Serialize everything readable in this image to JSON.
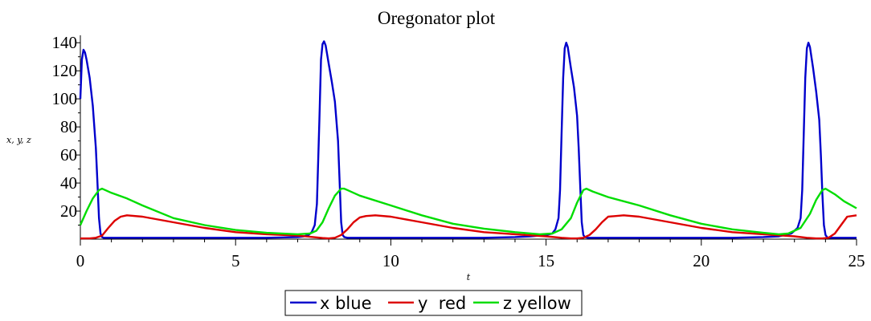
{
  "chart_data": {
    "type": "line",
    "title": "Oregonator  plot",
    "xlabel": "t",
    "ylabel": "x, y, z",
    "xlim": [
      0,
      25
    ],
    "ylim": [
      0,
      143
    ],
    "xticks": [
      0,
      5,
      10,
      15,
      20,
      25
    ],
    "yticks": [
      20,
      40,
      60,
      80,
      100,
      120,
      140
    ],
    "grid": false,
    "legend_position": "bottom-center",
    "series": [
      {
        "name": "x blue",
        "color": "#0000cc",
        "x": [
          0,
          0.05,
          0.1,
          0.15,
          0.2,
          0.3,
          0.4,
          0.5,
          0.55,
          0.6,
          0.65,
          0.7,
          0.75,
          0.8,
          1.0,
          2.0,
          4.0,
          6.0,
          7.0,
          7.2,
          7.35,
          7.45,
          7.55,
          7.62,
          7.7,
          7.75,
          7.8,
          7.85,
          7.9,
          8.0,
          8.1,
          8.2,
          8.3,
          8.35,
          8.4,
          8.45,
          8.5,
          8.6,
          9.0,
          11.0,
          13.0,
          14.0,
          14.5,
          15.0,
          15.2,
          15.3,
          15.4,
          15.45,
          15.5,
          15.55,
          15.6,
          15.65,
          15.7,
          15.8,
          15.9,
          16.0,
          16.05,
          16.1,
          16.15,
          16.2,
          16.25,
          16.35,
          17.0,
          19.0,
          21.0,
          22.0,
          22.5,
          22.9,
          23.1,
          23.2,
          23.25,
          23.3,
          23.35,
          23.4,
          23.45,
          23.5,
          23.6,
          23.7,
          23.8,
          23.85,
          23.9,
          23.95,
          24.0,
          24.05,
          24.1,
          24.2,
          24.5,
          25.0
        ],
        "y": [
          100,
          128,
          135,
          133,
          128,
          115,
          95,
          65,
          40,
          15,
          4,
          1.5,
          1,
          1,
          1,
          1,
          1,
          1,
          1.5,
          2,
          3,
          5,
          10,
          25,
          85,
          128,
          139,
          141,
          138,
          125,
          112,
          98,
          70,
          42,
          12,
          3,
          1.5,
          1,
          1,
          1,
          1,
          1.5,
          2,
          3,
          4,
          7,
          15,
          35,
          75,
          115,
          136,
          140,
          137,
          122,
          108,
          88,
          65,
          38,
          12,
          3,
          1.5,
          1,
          1,
          1,
          1,
          1.5,
          2,
          4,
          8,
          15,
          35,
          75,
          115,
          136,
          140,
          137,
          122,
          105,
          85,
          60,
          32,
          10,
          3,
          1.5,
          1,
          1,
          1,
          1
        ]
      },
      {
        "name": "y  red",
        "color": "#dd0000",
        "x": [
          0,
          0.3,
          0.5,
          0.7,
          0.9,
          1.1,
          1.3,
          1.5,
          2.0,
          3.0,
          4.0,
          5.0,
          6.0,
          7.0,
          7.5,
          7.8,
          8.0,
          8.2,
          8.4,
          8.6,
          8.8,
          9.0,
          9.2,
          9.5,
          10.0,
          11.0,
          12.0,
          13.0,
          14.0,
          15.0,
          15.5,
          15.8,
          16.0,
          16.2,
          16.4,
          16.6,
          16.8,
          17.0,
          17.5,
          18.0,
          19.0,
          20.0,
          21.0,
          22.0,
          23.0,
          23.4,
          23.7,
          23.9,
          24.1,
          24.3,
          24.5,
          24.7,
          25.0
        ],
        "y": [
          0.5,
          0.5,
          1,
          2.5,
          8,
          13,
          16,
          17,
          16,
          12,
          8,
          5,
          3.5,
          2.5,
          1.5,
          0.8,
          0.5,
          1,
          3,
          7,
          12,
          15.5,
          16.5,
          17,
          16,
          12,
          8,
          5,
          3.5,
          2,
          1,
          0.5,
          0.5,
          1,
          3,
          7,
          12,
          16,
          17,
          16,
          12,
          8,
          5,
          3.5,
          2,
          1,
          0.5,
          0.5,
          1,
          4,
          10,
          16,
          17
        ]
      },
      {
        "name": "z yellow",
        "color": "#00dd00",
        "x": [
          0,
          0.2,
          0.4,
          0.6,
          0.7,
          0.8,
          1.0,
          1.5,
          2.0,
          3.0,
          4.0,
          5.0,
          6.0,
          7.0,
          7.4,
          7.6,
          7.8,
          8.0,
          8.2,
          8.4,
          8.5,
          8.6,
          9.0,
          10.0,
          11.0,
          12.0,
          13.0,
          14.0,
          14.8,
          15.2,
          15.5,
          15.8,
          16.0,
          16.2,
          16.3,
          16.5,
          17.0,
          18.0,
          19.0,
          20.0,
          21.0,
          22.0,
          22.5,
          22.8,
          23.2,
          23.5,
          23.7,
          23.9,
          24.0,
          24.3,
          24.6,
          25.0
        ],
        "y": [
          10,
          20,
          29,
          35,
          36,
          35,
          33,
          29,
          24,
          15,
          10,
          6.5,
          4.5,
          3.5,
          4,
          6,
          12,
          22,
          31,
          36,
          36,
          35,
          31,
          24,
          17,
          11,
          7.5,
          5,
          3.5,
          4,
          7,
          15,
          26,
          35,
          36,
          34,
          30,
          24,
          17,
          11,
          7,
          4.5,
          3.5,
          4,
          8,
          18,
          28,
          35,
          36,
          32,
          27,
          22
        ]
      }
    ]
  }
}
